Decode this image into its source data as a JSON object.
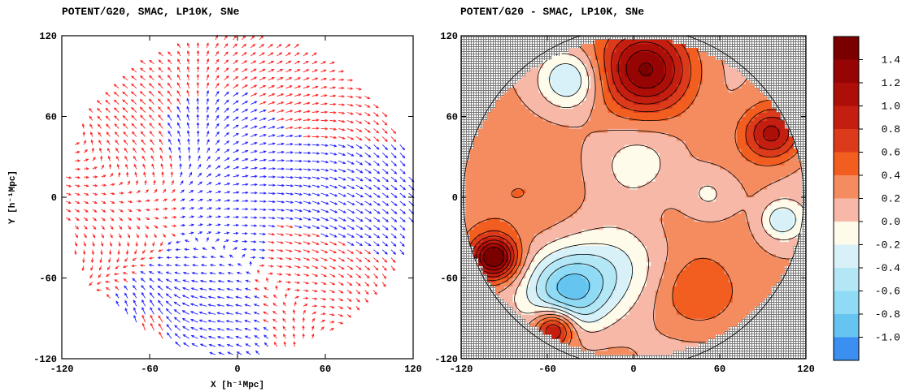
{
  "chart_data": [
    {
      "type": "scatter",
      "subtype": "vector-field",
      "title": "POTENT/G20, SMAC, LP10K, SNe",
      "xlabel": "X [h⁻¹Mpc]",
      "ylabel": "Y [h⁻¹Mpc]",
      "xlim": [
        -120,
        120
      ],
      "ylim": [
        -120,
        120
      ],
      "x_ticks": [
        "-120",
        "-60",
        "0",
        "60",
        "120"
      ],
      "y_ticks": [
        "120",
        "60",
        "0",
        "-60",
        "-120"
      ],
      "survey_radius": 118,
      "series": [
        {
          "sign": "positive",
          "color": "#ff2020"
        },
        {
          "sign": "negative",
          "color": "#2020ff"
        }
      ],
      "grid": false
    },
    {
      "type": "heatmap",
      "subtype": "contour",
      "title": "POTENT/G20 - SMAC, LP10K, SNe",
      "xlim": [
        -120,
        120
      ],
      "ylim": [
        -120,
        120
      ],
      "x_ticks": [
        "-120",
        "-60",
        "0",
        "60",
        "120"
      ],
      "y_ticks": [
        "120",
        "60",
        "0",
        "-60",
        "-120"
      ],
      "colorbar_ticks": [
        "1.4",
        "1.2",
        "1.0",
        "0.8",
        "0.6",
        "0.4",
        "0.2",
        "0.0",
        "-0.2",
        "-0.4",
        "-0.6",
        "-0.8",
        "-1.0"
      ],
      "levels": [
        1.6,
        1.4,
        1.2,
        1.0,
        0.8,
        0.6,
        0.4,
        0.2,
        0.0,
        -0.2,
        -0.4,
        -0.6,
        -0.8,
        -1.0,
        -1.2
      ],
      "level_colors": [
        "#7a0000",
        "#960404",
        "#ad0f08",
        "#c41e10",
        "#dc3b1b",
        "#f25d20",
        "#f58c60",
        "#f8b8a8",
        "#fffbea",
        "#d8f1f8",
        "#b3e7f5",
        "#8fdaf4",
        "#66c5f0",
        "#3a8ff0"
      ],
      "outside_hatch_color": "#7a7a7a",
      "features": [
        {
          "x": 10,
          "y": 95,
          "value": 1.4
        },
        {
          "x": 96,
          "y": 47,
          "value": 1.0
        },
        {
          "x": -97,
          "y": -45,
          "value": 1.6
        },
        {
          "x": -55,
          "y": -97,
          "value": 1.2
        },
        {
          "x": -45,
          "y": -70,
          "value": -1.0
        },
        {
          "x": -45,
          "y": 88,
          "value": -0.6
        },
        {
          "x": 103,
          "y": -17,
          "value": -0.4
        },
        {
          "x": 45,
          "y": -73,
          "value": 0.6
        },
        {
          "x": -65,
          "y": 2,
          "value": 0.4
        },
        {
          "x": 5,
          "y": 25,
          "value": -0.2
        },
        {
          "x": -8,
          "y": -50,
          "value": -0.2
        },
        {
          "x": 52,
          "y": 2,
          "value": -0.2
        }
      ]
    }
  ]
}
